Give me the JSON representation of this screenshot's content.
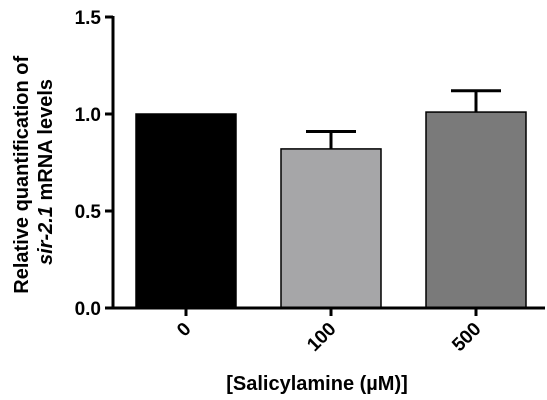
{
  "chart_data": {
    "type": "bar",
    "categories": [
      "0",
      "100",
      "500"
    ],
    "values": [
      1.0,
      0.82,
      1.01
    ],
    "errors": [
      0,
      0.09,
      0.11
    ],
    "ylim": [
      0,
      1.5
    ],
    "yticks": [
      "0.0",
      "0.5",
      "1.0",
      "1.5"
    ],
    "ytick_values": [
      0,
      0.5,
      1.0,
      1.5
    ],
    "xlabel": "[Salicylamine (µM)]",
    "ylabel": {
      "line1": "Relative quantification of",
      "line2_italic": "sir-2.1",
      "line2_rest": " mRNA levels"
    },
    "bar_colors": [
      "#000000",
      "#a6a6a8",
      "#7a7a7a"
    ],
    "grid": false
  }
}
